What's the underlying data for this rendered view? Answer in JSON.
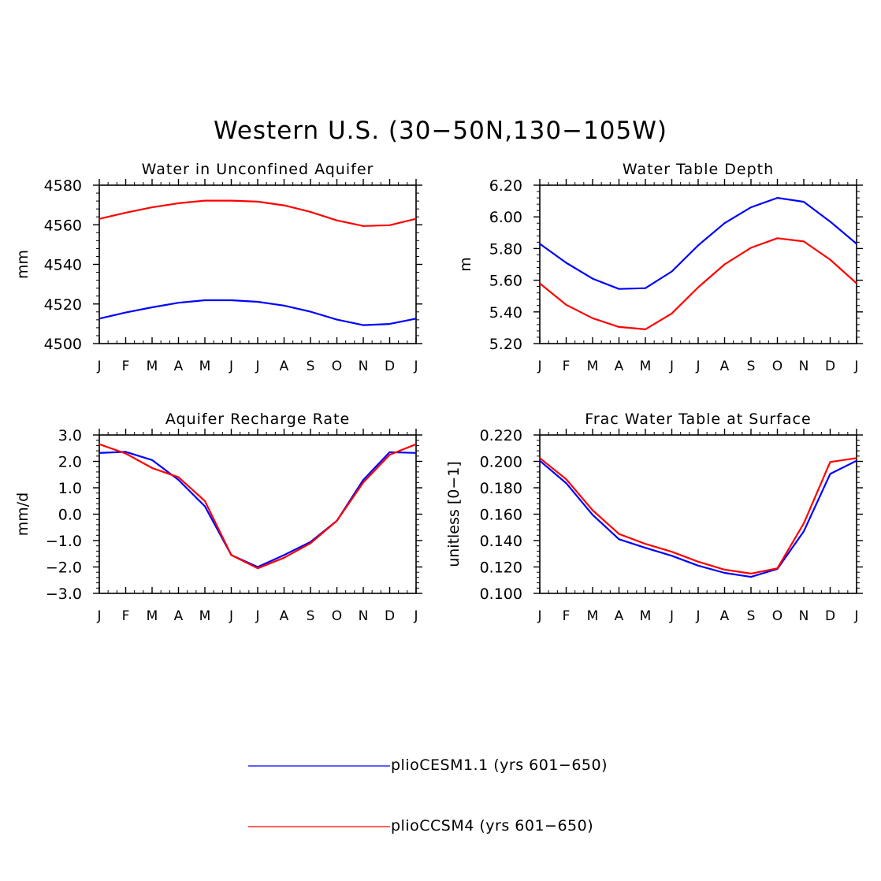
{
  "figure": {
    "title": "Western U.S. (30−50N,130−105W)"
  },
  "colors": {
    "series_a": "#0000ff",
    "series_b": "#ff0000",
    "axis": "#000000"
  },
  "legend": [
    {
      "label": "plioCESM1.1 (yrs 601−650)",
      "color": "#0000ff"
    },
    {
      "label": "plioCCSM4 (yrs 601−650)",
      "color": "#ff0000"
    }
  ],
  "chart_data": [
    {
      "type": "line",
      "title": "Water in Unconfined Aquifer",
      "ylabel": "mm",
      "xlabel": "",
      "categories": [
        "J",
        "F",
        "M",
        "A",
        "M",
        "J",
        "J",
        "A",
        "S",
        "O",
        "N",
        "D",
        "J"
      ],
      "ylim": [
        4500,
        4580
      ],
      "yticks": [
        4500,
        4520,
        4540,
        4560,
        4580
      ],
      "ytick_labels": [
        "4500",
        "4520",
        "4540",
        "4560",
        "4580"
      ],
      "series": [
        {
          "name": "plioCESM1.1 (yrs 601−650)",
          "color": "#0000ff",
          "values": [
            4512.6,
            4515.7,
            4518.3,
            4520.6,
            4521.9,
            4521.9,
            4521.1,
            4519.2,
            4516.1,
            4512.1,
            4509.3,
            4509.9,
            4512.6
          ]
        },
        {
          "name": "plioCCSM4 (yrs 601−650)",
          "color": "#ff0000",
          "values": [
            4563.0,
            4566.1,
            4568.8,
            4570.9,
            4572.2,
            4572.2,
            4571.7,
            4569.8,
            4566.5,
            4562.2,
            4559.4,
            4559.8,
            4563.0
          ]
        }
      ]
    },
    {
      "type": "line",
      "title": "Water Table Depth",
      "ylabel": "m",
      "xlabel": "",
      "categories": [
        "J",
        "F",
        "M",
        "A",
        "M",
        "J",
        "J",
        "A",
        "S",
        "O",
        "N",
        "D",
        "J"
      ],
      "ylim": [
        5.2,
        6.2
      ],
      "yticks": [
        5.2,
        5.4,
        5.6,
        5.8,
        6.0,
        6.2
      ],
      "ytick_labels": [
        "5.20",
        "5.40",
        "5.60",
        "5.80",
        "6.00",
        "6.20"
      ],
      "series": [
        {
          "name": "plioCESM1.1 (yrs 601−650)",
          "color": "#0000ff",
          "values": [
            5.83,
            5.71,
            5.61,
            5.545,
            5.55,
            5.655,
            5.82,
            5.96,
            6.06,
            6.12,
            6.095,
            5.97,
            5.83
          ]
        },
        {
          "name": "plioCCSM4 (yrs 601−650)",
          "color": "#ff0000",
          "values": [
            5.58,
            5.445,
            5.36,
            5.305,
            5.29,
            5.39,
            5.555,
            5.7,
            5.805,
            5.865,
            5.845,
            5.73,
            5.58
          ]
        }
      ]
    },
    {
      "type": "line",
      "title": "Aquifer Recharge Rate",
      "ylabel": "mm/d",
      "xlabel": "",
      "categories": [
        "J",
        "F",
        "M",
        "A",
        "M",
        "J",
        "J",
        "A",
        "S",
        "O",
        "N",
        "D",
        "J"
      ],
      "ylim": [
        -3.0,
        3.0
      ],
      "yticks": [
        -3,
        -2,
        -1,
        0,
        1,
        2,
        3
      ],
      "ytick_labels": [
        "−3.0",
        "−2.0",
        "−1.0",
        "0.0",
        "1.0",
        "2.0",
        "3.0"
      ],
      "series": [
        {
          "name": "plioCESM1.1 (yrs 601−650)",
          "color": "#0000ff",
          "values": [
            2.32,
            2.36,
            2.05,
            1.3,
            0.3,
            -1.55,
            -2.0,
            -1.55,
            -1.05,
            -0.25,
            1.3,
            2.35,
            2.32
          ]
        },
        {
          "name": "plioCCSM4 (yrs 601−650)",
          "color": "#ff0000",
          "values": [
            2.65,
            2.3,
            1.75,
            1.4,
            0.5,
            -1.55,
            -2.05,
            -1.65,
            -1.1,
            -0.25,
            1.2,
            2.25,
            2.65
          ]
        }
      ]
    },
    {
      "type": "line",
      "title": "Frac Water Table at Surface",
      "ylabel": "unitless [0−1]",
      "xlabel": "",
      "categories": [
        "J",
        "F",
        "M",
        "A",
        "M",
        "J",
        "J",
        "A",
        "S",
        "O",
        "N",
        "D",
        "J"
      ],
      "ylim": [
        0.1,
        0.22
      ],
      "yticks": [
        0.1,
        0.12,
        0.14,
        0.16,
        0.18,
        0.2,
        0.22
      ],
      "ytick_labels": [
        "0.100",
        "0.120",
        "0.140",
        "0.160",
        "0.180",
        "0.200",
        "0.220"
      ],
      "series": [
        {
          "name": "plioCESM1.1 (yrs 601−650)",
          "color": "#0000ff",
          "values": [
            0.2005,
            0.1835,
            0.1595,
            0.141,
            0.1345,
            0.1285,
            0.121,
            0.1155,
            0.1125,
            0.1185,
            0.147,
            0.1905,
            0.2005
          ]
        },
        {
          "name": "plioCCSM4 (yrs 601−650)",
          "color": "#ff0000",
          "values": [
            0.2025,
            0.1865,
            0.163,
            0.145,
            0.1375,
            0.1315,
            0.124,
            0.118,
            0.115,
            0.119,
            0.153,
            0.1995,
            0.2025
          ]
        }
      ]
    }
  ]
}
